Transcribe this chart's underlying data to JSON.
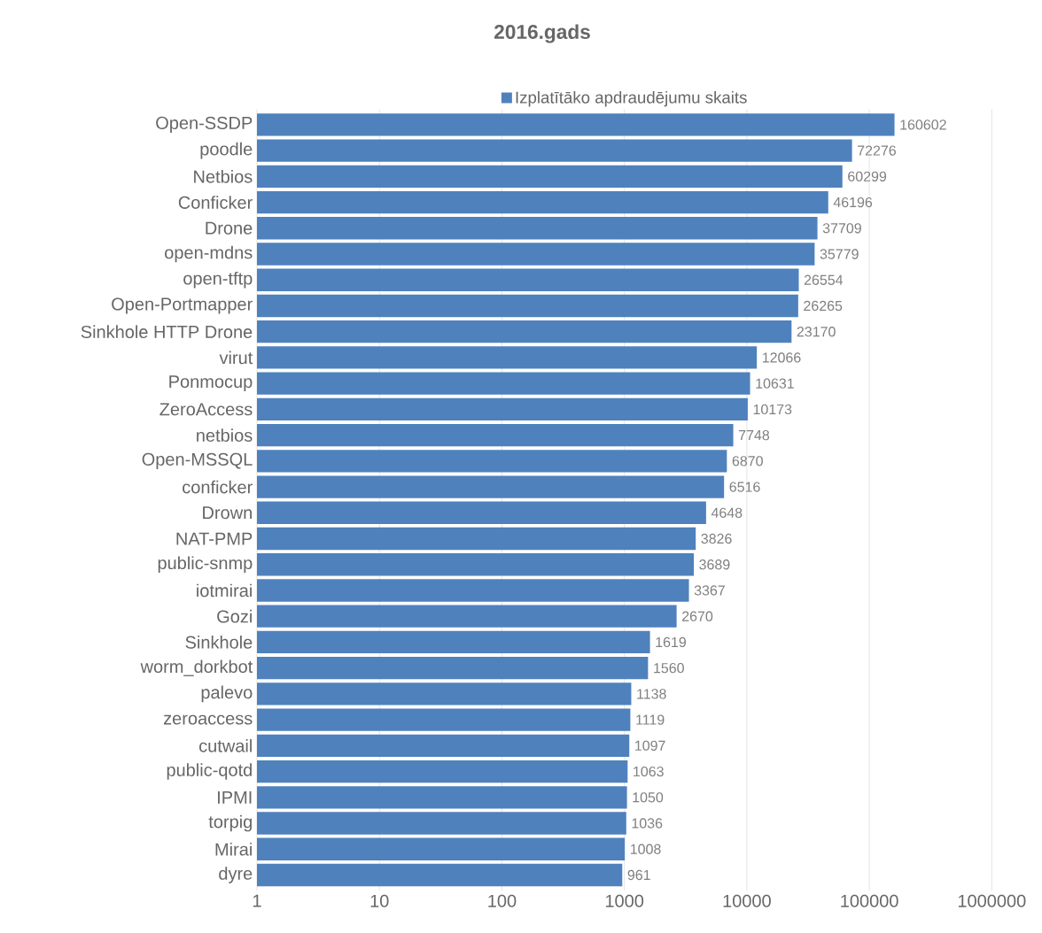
{
  "chart_data": {
    "type": "bar",
    "orientation": "horizontal",
    "title": "2016.gads",
    "categories": [
      "Open-SSDP",
      "poodle",
      "Netbios",
      "Conficker",
      "Drone",
      "open-mdns",
      "open-tftp",
      "Open-Portmapper",
      "Sinkhole HTTP Drone",
      "virut",
      "Ponmocup",
      "ZeroAccess",
      "netbios",
      "Open-MSSQL",
      "conficker",
      "Drown",
      "NAT-PMP",
      "public-snmp",
      "iotmirai",
      "Gozi",
      "Sinkhole",
      "worm_dorkbot",
      "palevo",
      "zeroaccess",
      "cutwail",
      "public-qotd",
      "IPMI",
      "torpig",
      "Mirai",
      "dyre"
    ],
    "series": [
      {
        "name": "Izplatītāko apdraudējumu skaits",
        "color": "#4f81bd",
        "values": [
          160602,
          72276,
          60299,
          46196,
          37709,
          35779,
          26554,
          26265,
          23170,
          12066,
          10631,
          10173,
          7748,
          6870,
          6516,
          4648,
          3826,
          3689,
          3367,
          2670,
          1619,
          1560,
          1138,
          1119,
          1097,
          1063,
          1050,
          1036,
          1008,
          961
        ]
      }
    ],
    "log": "x",
    "xlim": [
      1,
      1000000
    ],
    "xticks": [
      1,
      10,
      100,
      1000,
      10000,
      100000,
      1000000
    ],
    "grid": "x",
    "legend": "top",
    "data_labels": true
  }
}
